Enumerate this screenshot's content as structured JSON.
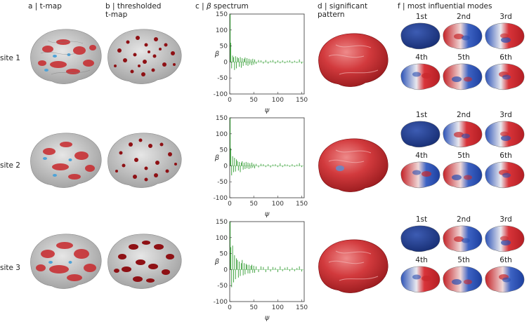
{
  "headers": {
    "a": "a | t-map",
    "b_line1": "b | thresholded",
    "b_line2": "t-map",
    "c_prefix": "c | ",
    "c_symbol": "β",
    "c_suffix": " spectrum",
    "d_line1": "d | significant",
    "d_line2": "pattern",
    "f": "f | most influential modes"
  },
  "rows": [
    {
      "label": "site 1"
    },
    {
      "label": "site 2"
    },
    {
      "label": "site 3"
    }
  ],
  "mode_labels": [
    "1st",
    "2nd",
    "3rd",
    "4th",
    "5th",
    "6th"
  ],
  "axis": {
    "ylabel": "β",
    "xlabel": "ψ",
    "xticks": [
      "0",
      "50",
      "100",
      "150"
    ],
    "yticks": [
      "150",
      "100",
      "50",
      "0",
      "-50",
      "-100"
    ]
  },
  "colors": {
    "brain_gray": "#c9c9c9",
    "brain_red": "#c8282c",
    "dark_red": "#7a0c10",
    "brain_blue": "#1f3b8f",
    "spike_green": "#2f9a2f"
  },
  "chart_data": [
    {
      "type": "bar",
      "title": "site 1",
      "xlabel": "ψ",
      "ylabel": "β",
      "xlim": [
        0,
        155
      ],
      "ylim": [
        -100,
        150
      ],
      "x": [
        1,
        2,
        4,
        6,
        8,
        10,
        12,
        14,
        16,
        18,
        20,
        22,
        24,
        26,
        28,
        30,
        32,
        34,
        36,
        38,
        40,
        42,
        44,
        46,
        48,
        50,
        52,
        55,
        60,
        65,
        70,
        75,
        80,
        85,
        90,
        95,
        100,
        105,
        110,
        115,
        120,
        125,
        130,
        135,
        140,
        145,
        150
      ],
      "values": [
        150,
        60,
        -20,
        20,
        15,
        -25,
        18,
        -20,
        15,
        12,
        -15,
        15,
        -18,
        12,
        -12,
        10,
        14,
        -10,
        12,
        -12,
        10,
        -8,
        8,
        -10,
        10,
        -8,
        8,
        -6,
        6,
        5,
        -5,
        6,
        -5,
        4,
        6,
        -5,
        5,
        -4,
        5,
        -4,
        4,
        5,
        -4,
        4,
        -3,
        8,
        -5
      ]
    },
    {
      "type": "bar",
      "title": "site 2",
      "xlabel": "ψ",
      "ylabel": "β",
      "xlim": [
        0,
        155
      ],
      "ylim": [
        -100,
        150
      ],
      "x": [
        1,
        2,
        4,
        6,
        8,
        10,
        12,
        14,
        16,
        18,
        20,
        22,
        24,
        26,
        28,
        30,
        32,
        34,
        36,
        38,
        40,
        42,
        44,
        46,
        48,
        50,
        52,
        55,
        60,
        65,
        70,
        75,
        80,
        85,
        90,
        95,
        100,
        105,
        110,
        115,
        120,
        125,
        130,
        135,
        140,
        145,
        150
      ],
      "values": [
        150,
        55,
        -30,
        30,
        -20,
        25,
        -18,
        20,
        15,
        -15,
        12,
        -20,
        10,
        14,
        -12,
        10,
        -10,
        12,
        -8,
        10,
        -10,
        8,
        -8,
        10,
        -6,
        6,
        -8,
        6,
        -5,
        6,
        5,
        -4,
        5,
        -5,
        4,
        5,
        -4,
        8,
        -4,
        5,
        4,
        -3,
        5,
        -3,
        4,
        8,
        -4
      ]
    },
    {
      "type": "bar",
      "title": "site 3",
      "xlabel": "ψ",
      "ylabel": "β",
      "xlim": [
        0,
        155
      ],
      "ylim": [
        -100,
        150
      ],
      "x": [
        1,
        2,
        4,
        6,
        8,
        10,
        12,
        14,
        16,
        18,
        20,
        22,
        24,
        26,
        28,
        30,
        32,
        34,
        36,
        38,
        40,
        42,
        44,
        46,
        48,
        50,
        52,
        55,
        60,
        65,
        70,
        75,
        80,
        85,
        90,
        95,
        100,
        105,
        110,
        115,
        120,
        125,
        130,
        135,
        140,
        145,
        150
      ],
      "values": [
        150,
        70,
        -55,
        75,
        -40,
        45,
        -30,
        35,
        30,
        -25,
        25,
        -20,
        20,
        30,
        -18,
        20,
        -15,
        18,
        15,
        -12,
        15,
        -12,
        12,
        15,
        -10,
        12,
        -10,
        10,
        -8,
        10,
        8,
        -8,
        10,
        -6,
        8,
        6,
        -8,
        10,
        -5,
        6,
        8,
        -5,
        6,
        -5,
        5,
        10,
        -6
      ]
    }
  ]
}
